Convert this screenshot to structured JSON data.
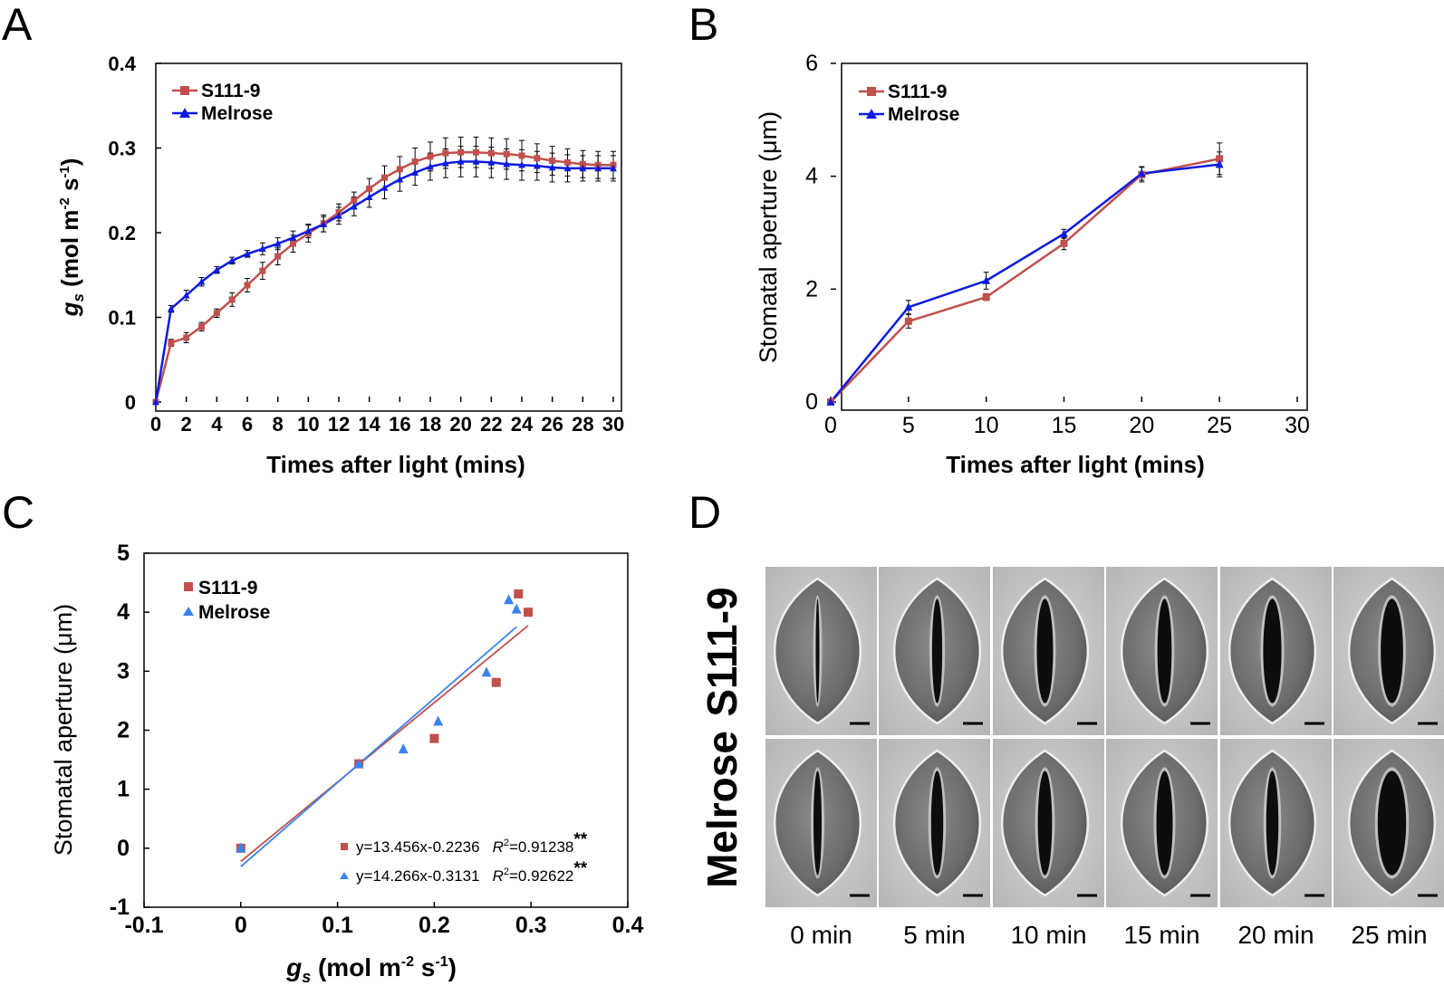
{
  "panels": {
    "A": "A",
    "B": "B",
    "C": "C",
    "D": "D"
  },
  "colors": {
    "s111": "#c0504d",
    "melrose_ab": "#0b1be0",
    "melrose_c": "#3b82f0"
  },
  "chart_data": [
    {
      "id": "A",
      "type": "line",
      "title": "",
      "xlabel": "Times after light (mins)",
      "ylabel_main": "g",
      "ylabel_sub": "s",
      "ylabel_rest": " (mol m",
      "ylabel_sup1": "-2",
      "ylabel_mid": " s",
      "ylabel_sup2": "-1",
      "ylabel_end": ")",
      "xlim": [
        0,
        30
      ],
      "ylim": [
        0,
        0.4
      ],
      "xticks": [
        "0",
        "2",
        "4",
        "6",
        "8",
        "10",
        "12",
        "14",
        "16",
        "18",
        "20",
        "22",
        "24",
        "26",
        "28",
        "30"
      ],
      "yticks": [
        "0",
        "0.1",
        "0.2",
        "0.3",
        "0.4"
      ],
      "x": [
        0,
        1,
        2,
        3,
        4,
        5,
        6,
        7,
        8,
        9,
        10,
        11,
        12,
        13,
        14,
        15,
        16,
        17,
        18,
        19,
        20,
        21,
        22,
        23,
        24,
        25,
        26,
        27,
        28,
        29,
        30
      ],
      "series": [
        {
          "name": "S111-9",
          "marker": "square",
          "values": [
            0,
            0.07,
            0.076,
            0.089,
            0.105,
            0.121,
            0.138,
            0.155,
            0.172,
            0.187,
            0.199,
            0.211,
            0.224,
            0.238,
            0.252,
            0.265,
            0.275,
            0.284,
            0.29,
            0.294,
            0.295,
            0.295,
            0.294,
            0.293,
            0.291,
            0.288,
            0.285,
            0.283,
            0.281,
            0.28,
            0.28
          ],
          "err": [
            0,
            0.004,
            0.006,
            0.005,
            0.005,
            0.008,
            0.008,
            0.01,
            0.01,
            0.01,
            0.01,
            0.01,
            0.01,
            0.01,
            0.012,
            0.014,
            0.015,
            0.016,
            0.017,
            0.018,
            0.018,
            0.018,
            0.018,
            0.018,
            0.018,
            0.017,
            0.017,
            0.016,
            0.016,
            0.016,
            0.016
          ]
        },
        {
          "name": "Melrose",
          "marker": "triangle",
          "values": [
            0,
            0.11,
            0.126,
            0.142,
            0.156,
            0.167,
            0.175,
            0.181,
            0.187,
            0.194,
            0.202,
            0.21,
            0.22,
            0.231,
            0.242,
            0.253,
            0.263,
            0.271,
            0.278,
            0.282,
            0.284,
            0.284,
            0.283,
            0.281,
            0.28,
            0.279,
            0.277,
            0.276,
            0.276,
            0.276,
            0.276
          ],
          "err": [
            0,
            0.004,
            0.006,
            0.005,
            0.004,
            0.004,
            0.004,
            0.007,
            0.007,
            0.008,
            0.008,
            0.009,
            0.01,
            0.011,
            0.012,
            0.013,
            0.014,
            0.015,
            0.016,
            0.017,
            0.018,
            0.018,
            0.018,
            0.018,
            0.018,
            0.017,
            0.017,
            0.016,
            0.015,
            0.015,
            0.015
          ]
        }
      ]
    },
    {
      "id": "B",
      "type": "line",
      "title": "",
      "xlabel": "Times after light (mins)",
      "ylabel": "Stomatal aperture (μm)",
      "xlim": [
        0,
        30
      ],
      "ylim": [
        0,
        6
      ],
      "xticks": [
        "0",
        "5",
        "10",
        "15",
        "20",
        "25",
        "30"
      ],
      "yticks": [
        "0",
        "2",
        "4",
        "6"
      ],
      "x": [
        0,
        5,
        10,
        15,
        20,
        25
      ],
      "series": [
        {
          "name": "S111-9",
          "marker": "square",
          "values": [
            0,
            1.43,
            1.86,
            2.81,
            4.03,
            4.31
          ],
          "err": [
            0,
            0.12,
            0.06,
            0.11,
            0.13,
            0.28
          ]
        },
        {
          "name": "Melrose",
          "marker": "triangle",
          "values": [
            0,
            1.68,
            2.15,
            2.98,
            4.05,
            4.21
          ],
          "err": [
            0,
            0.12,
            0.15,
            0.08,
            0.12,
            0.22
          ]
        }
      ]
    },
    {
      "id": "C",
      "type": "scatter",
      "title": "",
      "xlabel_main": "g",
      "xlabel_sub": "s",
      "xlabel_rest": " (mol m",
      "xlabel_sup1": "-2",
      "xlabel_mid": " s",
      "xlabel_sup2": "-1",
      "xlabel_end": ")",
      "ylabel": "Stomatal aperture (μm)",
      "xlim": [
        -0.1,
        0.4
      ],
      "ylim": [
        -1,
        5
      ],
      "xticks": [
        "-0.1",
        "0",
        "0.1",
        "0.2",
        "0.3",
        "0.4"
      ],
      "yticks": [
        "-1",
        "0",
        "1",
        "2",
        "3",
        "4",
        "5"
      ],
      "series": [
        {
          "name": "S111-9",
          "marker": "square",
          "points": [
            [
              0,
              0
            ],
            [
              0.122,
              1.43
            ],
            [
              0.2,
              1.86
            ],
            [
              0.264,
              2.81
            ],
            [
              0.287,
              4.31
            ],
            [
              0.297,
              4.0
            ]
          ],
          "fit": {
            "slope": 13.456,
            "intercept": -0.2236,
            "x_range": [
              0,
              0.297
            ]
          },
          "equation": "y=13.456x-0.2236",
          "r2_label": "R",
          "r2_value": "=0.91238",
          "sig": "**"
        },
        {
          "name": "Melrose",
          "marker": "triangle",
          "points": [
            [
              0,
              0
            ],
            [
              0.122,
              1.43
            ],
            [
              0.168,
              1.68
            ],
            [
              0.204,
              2.15
            ],
            [
              0.254,
              2.98
            ],
            [
              0.277,
              4.21
            ],
            [
              0.285,
              4.05
            ]
          ],
          "fit": {
            "slope": 14.266,
            "intercept": -0.3131,
            "x_range": [
              0,
              0.285
            ]
          },
          "equation": "y=14.266x-0.3131",
          "r2_label": "R",
          "r2_value": "=0.92622",
          "sig": "**"
        }
      ]
    }
  ],
  "panel_D": {
    "rows": [
      "S111-9",
      "Melrose"
    ],
    "columns": [
      "0 min",
      "5 min",
      "10 min",
      "15 min",
      "20 min",
      "25 min"
    ]
  }
}
